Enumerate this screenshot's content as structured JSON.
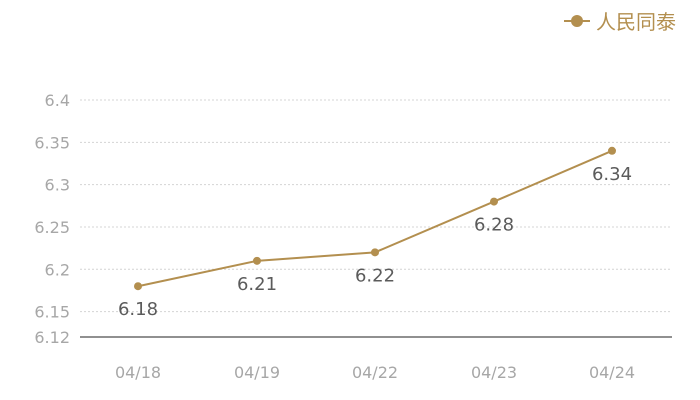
{
  "chart_data": {
    "type": "line",
    "categories": [
      "04/18",
      "04/19",
      "04/22",
      "04/23",
      "04/24"
    ],
    "series": [
      {
        "name": "人民同泰",
        "values": [
          6.18,
          6.21,
          6.22,
          6.28,
          6.34
        ]
      }
    ],
    "data_labels": [
      "6.18",
      "6.21",
      "6.22",
      "6.28",
      "6.34"
    ],
    "y_ticks": [
      6.4,
      6.35,
      6.3,
      6.25,
      6.2,
      6.15,
      6.12
    ],
    "y_tick_labels": [
      "6.4",
      "6.35",
      "6.3",
      "6.25",
      "6.2",
      "6.15",
      "6.12"
    ],
    "ylim": [
      6.12,
      6.4
    ],
    "grid": true,
    "legend_position": "top-right",
    "title": "",
    "xlabel": "",
    "ylabel": ""
  },
  "colors": {
    "series": "#b38f4f",
    "grid": "#d4d4d4",
    "axis": "#222222",
    "tick_text": "#a7a7a7",
    "label_text": "#5b5b5b"
  }
}
